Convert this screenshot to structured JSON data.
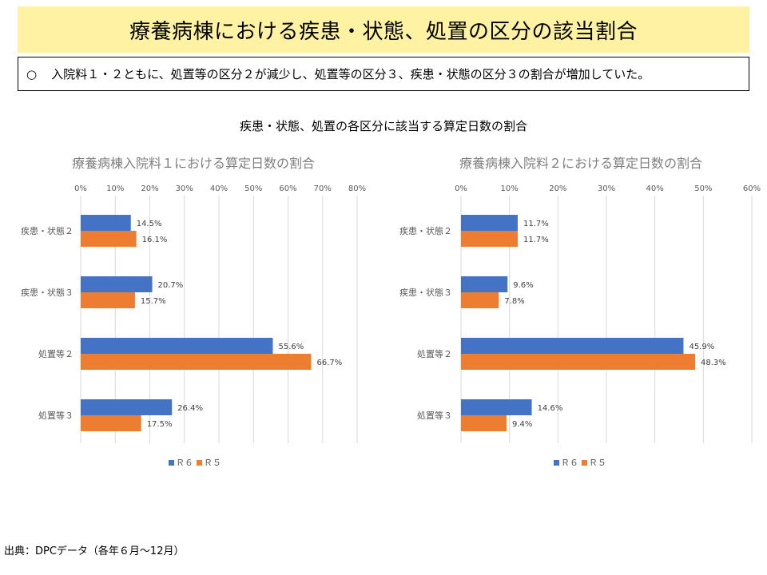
{
  "header": {
    "title": "療養病棟における疾患・状態、処置の区分の該当割合"
  },
  "summary": {
    "bullet": "○",
    "text": "入院料１・２ともに、処置等の区分２が減少し、処置等の区分３、疾患・状態の区分３の割合が増加していた。"
  },
  "section": {
    "title": "疾患・状態、処置の各区分に該当する算定日数の割合"
  },
  "chart_data": [
    {
      "type": "bar",
      "orientation": "horizontal",
      "title": "療養病棟入院料１における算定日数の割合",
      "categories": [
        "疾患・状態２",
        "疾患・状態３",
        "処置等２",
        "処置等３"
      ],
      "series": [
        {
          "name": "Ｒ６",
          "color": "#4472C4",
          "values": [
            14.5,
            20.7,
            55.6,
            26.4
          ]
        },
        {
          "name": "Ｒ５",
          "color": "#ED7D31",
          "values": [
            16.1,
            15.7,
            66.7,
            17.5
          ]
        }
      ],
      "xlim": [
        0,
        80
      ],
      "xticks": [
        0,
        10,
        20,
        30,
        40,
        50,
        60,
        70,
        80
      ],
      "unit": "%",
      "grid": true,
      "legend_position": "bottom"
    },
    {
      "type": "bar",
      "orientation": "horizontal",
      "title": "療養病棟入院料２における算定日数の割合",
      "categories": [
        "疾患・状態２",
        "疾患・状態３",
        "処置等２",
        "処置等３"
      ],
      "series": [
        {
          "name": "Ｒ６",
          "color": "#4472C4",
          "values": [
            11.7,
            9.6,
            45.9,
            14.6
          ]
        },
        {
          "name": "Ｒ５",
          "color": "#ED7D31",
          "values": [
            11.7,
            7.8,
            48.3,
            9.4
          ]
        }
      ],
      "xlim": [
        0,
        60
      ],
      "xticks": [
        0,
        10,
        20,
        30,
        40,
        50,
        60
      ],
      "unit": "%",
      "grid": true,
      "legend_position": "bottom"
    }
  ],
  "footer": {
    "source": "出典：DPCデータ（各年６月～12月）"
  }
}
